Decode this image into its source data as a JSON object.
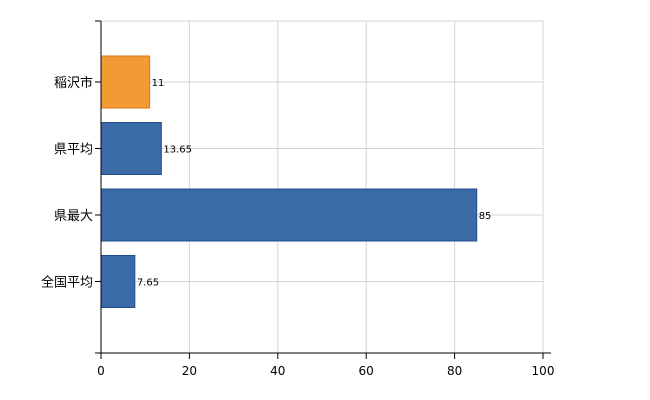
{
  "chart_data": {
    "type": "bar",
    "orientation": "horizontal",
    "categories": [
      "稲沢市",
      "県平均",
      "県最大",
      "全国平均"
    ],
    "values": [
      11,
      13.65,
      85,
      7.65
    ],
    "value_labels": [
      "11",
      "13.65",
      "85",
      "7.65"
    ],
    "bar_colors": [
      "#f39a35",
      "#3b6ba7",
      "#3b6ba7",
      "#3b6ba7"
    ],
    "bar_stroke": "#1f4e8c",
    "highlight_stroke": "#d9771c",
    "xlim": [
      0,
      100
    ],
    "xticks": [
      0,
      20,
      40,
      60,
      80,
      100
    ],
    "xtick_labels": [
      "0",
      "20",
      "40",
      "60",
      "80",
      "100"
    ],
    "grid": true,
    "grid_color": "#d4d4d4",
    "title": "",
    "xlabel": "",
    "ylabel": ""
  }
}
